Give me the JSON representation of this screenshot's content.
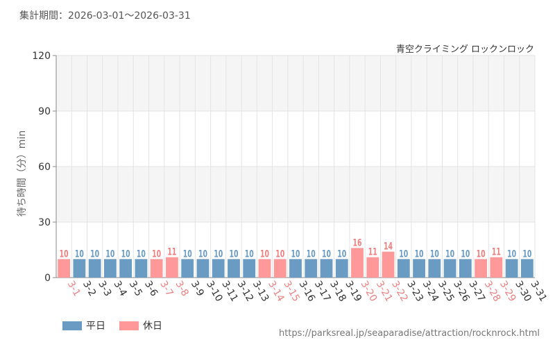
{
  "header": {
    "period_label": "集計期間：2026-03-01～2026-03-31",
    "attraction_name": "青空クライミング ロックンロック"
  },
  "footer": {
    "source_url": "https://parksreal.jp/seaparadise/attraction/rocknrock.html"
  },
  "colors": {
    "weekday": "#6a9bc3",
    "holiday": "#ff9999",
    "holiday_text": "#f08080",
    "weekday_text": "#333333",
    "band": "#f5f5f5",
    "grid": "#e3e3e3"
  },
  "chart_data": {
    "type": "bar",
    "ylabel": "待ち時間（分）min",
    "ylim": [
      0,
      120
    ],
    "yticks": [
      0,
      30,
      60,
      90,
      120
    ],
    "grid": true,
    "legend_position": "bottom-left",
    "legend": [
      {
        "label": "平日",
        "kind": "weekday"
      },
      {
        "label": "休日",
        "kind": "holiday"
      }
    ],
    "categories": [
      "3-1",
      "3-2",
      "3-3",
      "3-4",
      "3-5",
      "3-6",
      "3-7",
      "3-8",
      "3-9",
      "3-10",
      "3-11",
      "3-12",
      "3-13",
      "3-14",
      "3-15",
      "3-16",
      "3-17",
      "3-18",
      "3-19",
      "3-20",
      "3-21",
      "3-22",
      "3-23",
      "3-24",
      "3-25",
      "3-26",
      "3-27",
      "3-28",
      "3-29",
      "3-30",
      "3-31"
    ],
    "values": [
      10,
      10,
      10,
      10,
      10,
      10,
      10,
      11,
      10,
      10,
      10,
      10,
      10,
      10,
      10,
      10,
      10,
      10,
      10,
      16,
      11,
      14,
      10,
      10,
      10,
      10,
      10,
      10,
      11,
      10,
      10
    ],
    "holiday": [
      true,
      false,
      false,
      false,
      false,
      false,
      true,
      true,
      false,
      false,
      false,
      false,
      false,
      true,
      true,
      false,
      false,
      false,
      false,
      true,
      true,
      true,
      false,
      false,
      false,
      false,
      false,
      true,
      true,
      false,
      false
    ]
  }
}
